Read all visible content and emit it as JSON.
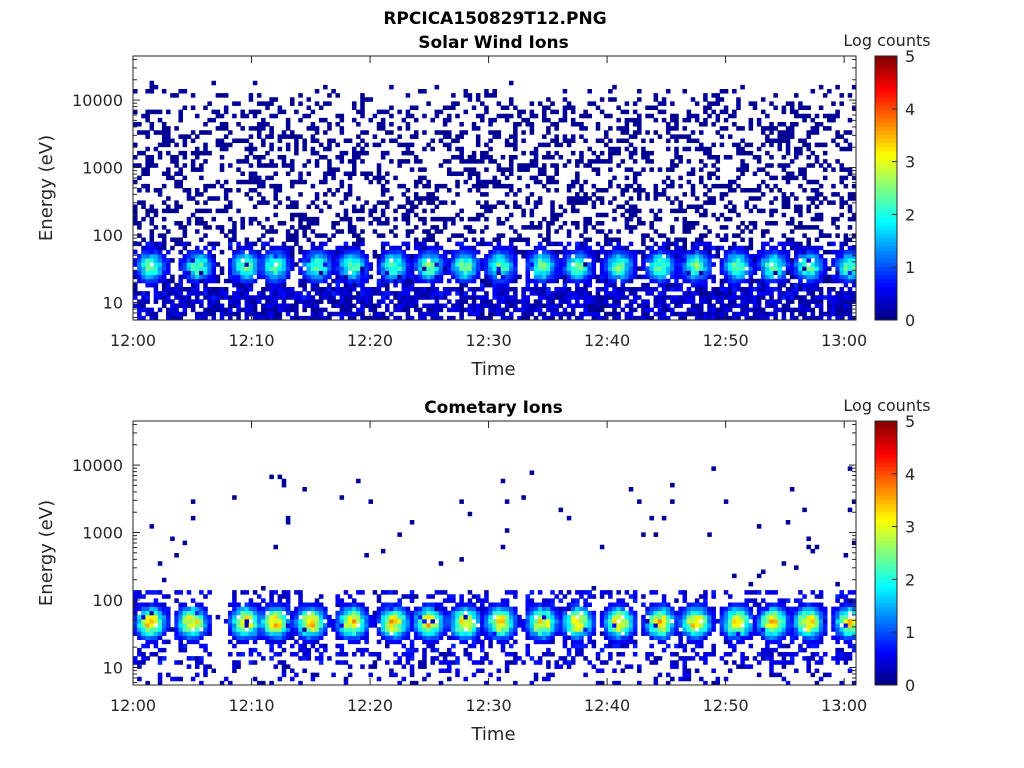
{
  "figure": {
    "title": "RPCICA150829T12.PNG"
  },
  "colormap": "jet",
  "chart_data": [
    {
      "type": "heatmap",
      "title": "Solar Wind Ions",
      "xlabel": "Time",
      "ylabel": "Energy (eV)",
      "x_ticks": [
        "12:00",
        "12:10",
        "12:20",
        "12:30",
        "12:40",
        "12:50",
        "13:00"
      ],
      "xlim_minutes": [
        0,
        61
      ],
      "yscale": "log",
      "ylim": [
        5.5,
        45000
      ],
      "y_ticks": [
        10,
        100,
        1000,
        10000
      ],
      "y_tick_labels": [
        "10",
        "100",
        "1000",
        "10000"
      ],
      "colorbar": {
        "label": "Log counts",
        "range": [
          0,
          5
        ],
        "ticks": [
          "0",
          "1",
          "2",
          "3",
          "4",
          "5"
        ]
      },
      "features": {
        "background_noise": {
          "energy_range_eV": [
            5.5,
            20000
          ],
          "log_counts": 0.1,
          "density": "high"
        },
        "ion_bursts_energy_eV": [
          20,
          60
        ],
        "burst_center_minutes": [
          1.5,
          5.5,
          9.5,
          12,
          15.5,
          18.5,
          22,
          25,
          28,
          31,
          34.5,
          37.5,
          41,
          44.5,
          47.5,
          51,
          54,
          57,
          60.5
        ],
        "burst_peak_log_counts": 2.8
      }
    },
    {
      "type": "heatmap",
      "title": "Cometary Ions",
      "xlabel": "Time",
      "ylabel": "Energy (eV)",
      "x_ticks": [
        "12:00",
        "12:10",
        "12:20",
        "12:30",
        "12:40",
        "12:50",
        "13:00"
      ],
      "xlim_minutes": [
        0,
        61
      ],
      "yscale": "log",
      "ylim": [
        5.5,
        45000
      ],
      "y_ticks": [
        10,
        100,
        1000,
        10000
      ],
      "y_tick_labels": [
        "10",
        "100",
        "1000",
        "10000"
      ],
      "colorbar": {
        "label": "Log counts",
        "range": [
          0,
          5
        ],
        "ticks": [
          "0",
          "1",
          "2",
          "3",
          "4",
          "5"
        ]
      },
      "features": {
        "background_noise": {
          "energy_range_eV": [
            5.5,
            12000
          ],
          "log_counts": 0.1,
          "density": "sparse"
        },
        "ion_bursts_energy_eV": [
          20,
          110
        ],
        "burst_center_minutes": [
          1.5,
          5,
          9.5,
          12,
          15,
          18.5,
          22,
          25,
          28,
          31,
          34.5,
          37.5,
          41,
          44.5,
          47.5,
          51,
          54,
          57,
          60.5
        ],
        "burst_peak_log_counts": 3.9
      }
    }
  ]
}
